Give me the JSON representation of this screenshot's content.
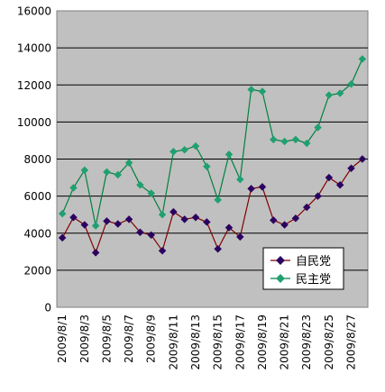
{
  "chart_data": {
    "type": "line",
    "x": [
      "2009/8/1",
      "2009/8/2",
      "2009/8/3",
      "2009/8/4",
      "2009/8/5",
      "2009/8/6",
      "2009/8/7",
      "2009/8/8",
      "2009/8/9",
      "2009/8/10",
      "2009/8/11",
      "2009/8/12",
      "2009/8/13",
      "2009/8/14",
      "2009/8/15",
      "2009/8/16",
      "2009/8/17",
      "2009/8/18",
      "2009/8/19",
      "2009/8/20",
      "2009/8/21",
      "2009/8/22",
      "2009/8/23",
      "2009/8/24",
      "2009/8/25",
      "2009/8/26",
      "2009/8/27",
      "2009/8/28"
    ],
    "x_tick_labels": [
      "2009/8/1",
      "2009/8/3",
      "2009/8/5",
      "2009/8/7",
      "2009/8/9",
      "2009/8/11",
      "2009/8/13",
      "2009/8/15",
      "2009/8/17",
      "2009/8/19",
      "2009/8/21",
      "2009/8/23",
      "2009/8/25",
      "2009/8/27"
    ],
    "ylim": [
      0,
      16000
    ],
    "y_ticks": [
      "0",
      "2000",
      "4000",
      "6000",
      "8000",
      "10000",
      "12000",
      "14000",
      "16000"
    ],
    "grid": true,
    "legend_position": "bottom-right",
    "plot_background": "#c0c0c0",
    "series": [
      {
        "name": "自民党",
        "color": "#800000",
        "marker_color": "#2b0060",
        "values": [
          3750,
          4850,
          4450,
          2950,
          4650,
          4500,
          4750,
          4050,
          3900,
          3050,
          5150,
          4750,
          4850,
          4600,
          3150,
          4300,
          3800,
          6400,
          6500,
          4700,
          4450,
          4800,
          5400,
          6000,
          7000,
          6600,
          7500,
          8000
        ]
      },
      {
        "name": "民主党",
        "color": "#008040",
        "marker_color": "#20a070",
        "values": [
          5050,
          6450,
          7400,
          4400,
          7300,
          7150,
          7800,
          6600,
          6150,
          5000,
          8400,
          8500,
          8700,
          7600,
          5800,
          8250,
          6900,
          11750,
          11650,
          9050,
          8950,
          9050,
          8850,
          9700,
          11450,
          11550,
          12050,
          13400
        ]
      }
    ]
  }
}
